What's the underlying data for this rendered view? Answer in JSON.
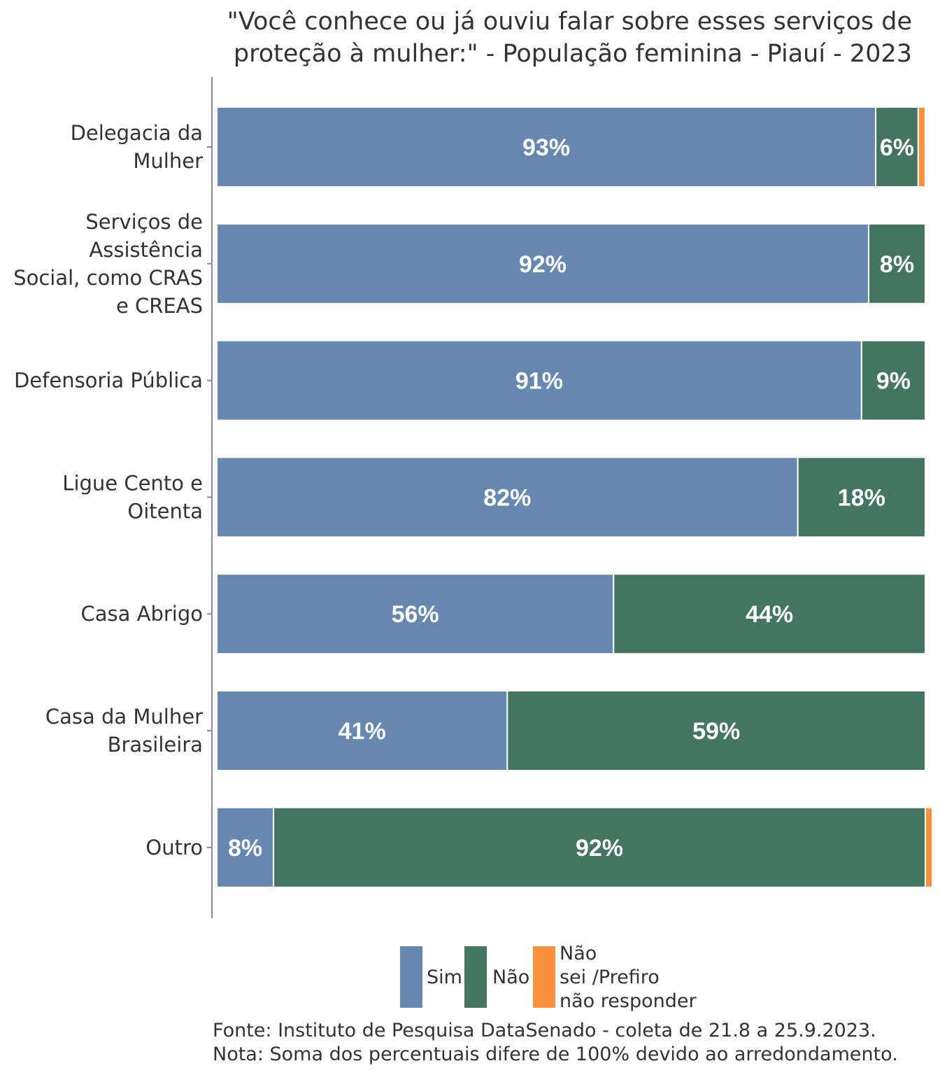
{
  "title_lines": [
    "\"Você conhece ou já ouviu falar sobre esses serviços de",
    "proteção à mulher:\" - População feminina - Piauí - 2023"
  ],
  "chart_data": {
    "type": "bar",
    "orientation": "horizontal",
    "stacked": true,
    "title": "\"Você conhece ou já ouviu falar sobre esses serviços de proteção à mulher:\" - População feminina - Piauí - 2023",
    "categories": [
      [
        "Delegacia da",
        "Mulher"
      ],
      [
        "Serviços de",
        "Assistência",
        "Social, como CRAS",
        "e CREAS"
      ],
      [
        "Defensoria Pública"
      ],
      [
        "Ligue Cento e",
        "Oitenta"
      ],
      [
        "Casa Abrigo"
      ],
      [
        "Casa da Mulher",
        "Brasileira"
      ],
      [
        "Outro"
      ]
    ],
    "series": [
      {
        "name": "Sim",
        "color": "#6688B0",
        "values": [
          93,
          92,
          91,
          82,
          56,
          41,
          8
        ]
      },
      {
        "name": "Não",
        "color": "#447563",
        "values": [
          6,
          8,
          9,
          18,
          44,
          59,
          92
        ]
      },
      {
        "name": "Não sei /Prefiro não responder",
        "color": "#F9913F",
        "values": [
          1,
          0,
          0,
          0,
          0,
          0,
          1
        ]
      }
    ],
    "value_labels": [
      [
        "93%",
        "6%",
        ""
      ],
      [
        "92%",
        "8%",
        ""
      ],
      [
        "91%",
        "9%",
        ""
      ],
      [
        "82%",
        "18%",
        ""
      ],
      [
        "56%",
        "44%",
        ""
      ],
      [
        "41%",
        "59%",
        ""
      ],
      [
        "8%",
        "92%",
        ""
      ]
    ],
    "xlim": [
      0,
      100
    ],
    "grid": false,
    "legend_position": "bottom"
  },
  "legend": {
    "items": [
      {
        "lines": [
          "Sim"
        ],
        "color": "#6688B0"
      },
      {
        "lines": [
          "Não"
        ],
        "color": "#447563"
      },
      {
        "lines": [
          "Não",
          "sei /Prefiro",
          "não responder"
        ],
        "color": "#F9913F"
      }
    ]
  },
  "footer": {
    "source": "Fonte: Instituto de Pesquisa DataSenado - coleta de 21.8 a 25.9.2023.",
    "note": "Nota: Soma dos percentuais difere de 100% devido ao arredondamento."
  }
}
